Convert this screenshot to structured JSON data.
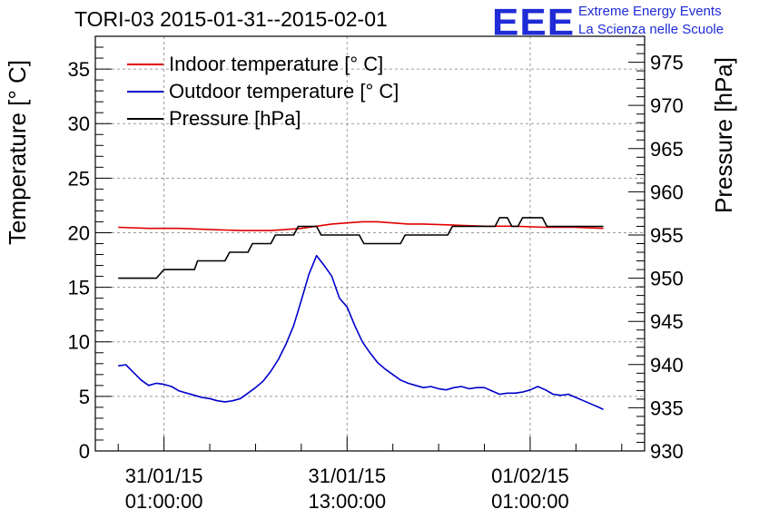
{
  "title": "TORI-03 2015-01-31--2015-02-01",
  "logo": {
    "mark": "EEE",
    "line1": "Extreme Energy Events",
    "line2": "La Scienza nelle Scuole"
  },
  "chart_data": {
    "type": "line",
    "ylabel_left": "Temperature [° C]",
    "ylabel_right": "Pressure [hPa]",
    "ylim_left": [
      0,
      38
    ],
    "ylim_right": [
      930,
      978
    ],
    "xlim_hours": [
      -4.5,
      31.5
    ],
    "grid": true,
    "legend_position": "top-left",
    "x_ticks": [
      {
        "hour": 0,
        "line1": "31/01/15",
        "line2": "01:00:00"
      },
      {
        "hour": 12,
        "line1": "31/01/15",
        "line2": "13:00:00"
      },
      {
        "hour": 24,
        "line1": "01/02/15",
        "line2": "01:00:00"
      }
    ],
    "y_ticks_left": [
      0,
      5,
      10,
      15,
      20,
      25,
      30,
      35
    ],
    "y_ticks_right": [
      930,
      935,
      940,
      945,
      950,
      955,
      960,
      965,
      970,
      975
    ],
    "series": [
      {
        "name": "Indoor temperature [° C]",
        "color": "#e00000",
        "axis": "left",
        "x": [
          -3,
          -1,
          1,
          3,
          5,
          7,
          8,
          9,
          10,
          11,
          12,
          13,
          14,
          15,
          16,
          17,
          19,
          21,
          23,
          25,
          27,
          28.8
        ],
        "y": [
          20.5,
          20.4,
          20.4,
          20.3,
          20.2,
          20.2,
          20.3,
          20.4,
          20.6,
          20.8,
          20.9,
          21.0,
          21.0,
          20.9,
          20.8,
          20.8,
          20.7,
          20.6,
          20.6,
          20.5,
          20.5,
          20.4
        ]
      },
      {
        "name": "Outdoor temperature [° C]",
        "color": "#0000cc",
        "axis": "left",
        "x": [
          -3,
          -2.5,
          -2,
          -1.5,
          -1,
          -0.5,
          0,
          0.5,
          1,
          1.5,
          2,
          2.5,
          3,
          3.5,
          4,
          4.5,
          5,
          5.5,
          6,
          6.5,
          7,
          7.5,
          8,
          8.5,
          9,
          9.5,
          10,
          10.5,
          11,
          11.5,
          12,
          12.5,
          13,
          13.5,
          14,
          14.5,
          15,
          15.5,
          16,
          16.5,
          17,
          17.5,
          18,
          18.5,
          19,
          19.5,
          20,
          20.5,
          21,
          21.5,
          22,
          22.5,
          23,
          23.5,
          24,
          24.5,
          25,
          25.5,
          26,
          26.5,
          27,
          27.5,
          28,
          28.5,
          28.8
        ],
        "y": [
          7.8,
          7.9,
          7.2,
          6.5,
          6.0,
          6.2,
          6.1,
          5.9,
          5.5,
          5.3,
          5.1,
          4.9,
          4.8,
          4.6,
          4.5,
          4.6,
          4.8,
          5.3,
          5.8,
          6.4,
          7.3,
          8.4,
          9.8,
          11.5,
          13.8,
          16.2,
          17.9,
          17.0,
          16.0,
          14.0,
          13.2,
          11.5,
          10.0,
          9.0,
          8.1,
          7.5,
          7.0,
          6.5,
          6.2,
          6.0,
          5.8,
          5.9,
          5.7,
          5.6,
          5.8,
          5.9,
          5.7,
          5.8,
          5.8,
          5.5,
          5.2,
          5.3,
          5.3,
          5.4,
          5.6,
          5.9,
          5.6,
          5.2,
          5.1,
          5.2,
          4.9,
          4.6,
          4.3,
          4.0,
          3.8
        ]
      },
      {
        "name": "Pressure [hPa]",
        "color": "#000000",
        "axis": "right",
        "x": [
          -3,
          -0.5,
          0,
          2,
          2.2,
          4,
          4.3,
          5.5,
          5.8,
          7,
          7.3,
          8.5,
          8.8,
          10,
          10.3,
          12.8,
          13.1,
          15.5,
          15.8,
          18.6,
          18.9,
          21.7,
          22,
          22.5,
          22.8,
          23.2,
          23.5,
          24.8,
          25.1,
          28.8
        ],
        "y": [
          950,
          950,
          951,
          951,
          952,
          952,
          953,
          953,
          954,
          954,
          955,
          955,
          956,
          956,
          955,
          955,
          954,
          954,
          955,
          955,
          956,
          956,
          957,
          957,
          956,
          956,
          957,
          957,
          956,
          956
        ]
      }
    ]
  }
}
